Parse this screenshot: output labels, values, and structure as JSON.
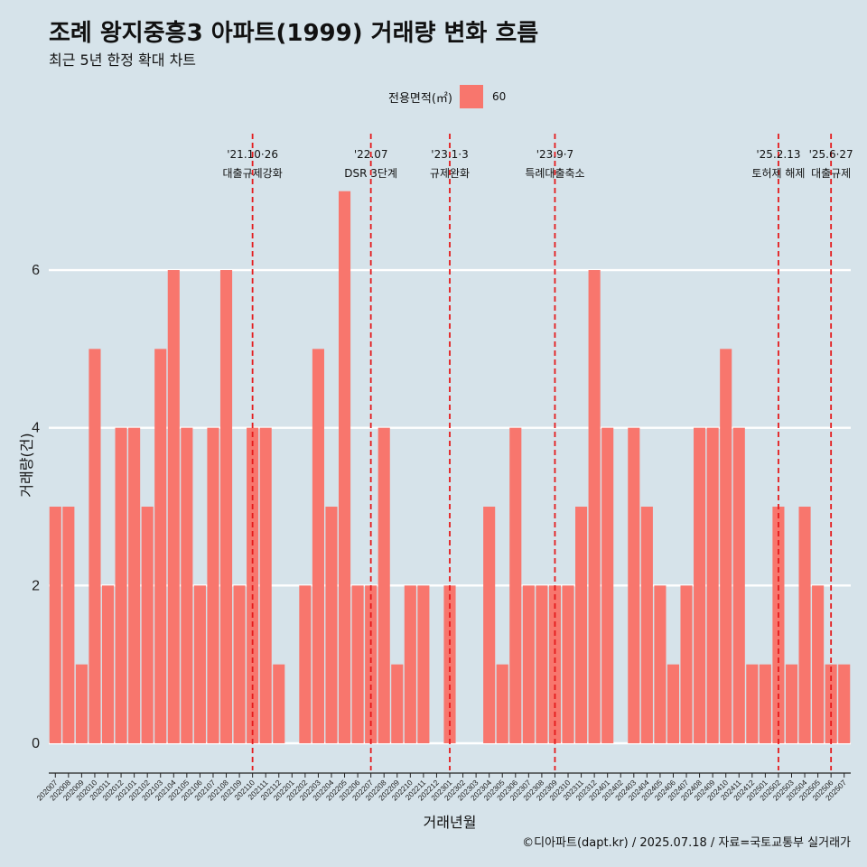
{
  "header": {
    "title": "조례 왕지중흥3 아파트(1999) 거래량 변화 흐름",
    "subtitle": "최근 5년 한정 확대 차트"
  },
  "legend": {
    "title": "전용면적(㎡)",
    "items": [
      {
        "label": "60",
        "color": "#f8766d"
      }
    ]
  },
  "caption": "©디아파트(dapt.kr) / 2025.07.18 / 자료=국토교통부 실거래가",
  "chart_data": {
    "type": "bar",
    "title": "조례 왕지중흥3 아파트(1999) 거래량 변화 흐름",
    "subtitle": "최근 5년 한정 확대 차트",
    "xlabel": "거래년월",
    "ylabel": "거래량(건)",
    "ylim": [
      0,
      7.3
    ],
    "yticks": [
      0,
      2,
      4,
      6
    ],
    "grid": true,
    "legend_position": "top",
    "bar_color": "#f8766d",
    "categories": [
      "202007",
      "202008",
      "202009",
      "202010",
      "202011",
      "202012",
      "202101",
      "202102",
      "202103",
      "202104",
      "202105",
      "202106",
      "202107",
      "202108",
      "202109",
      "202110",
      "202111",
      "202112",
      "202201",
      "202202",
      "202203",
      "202204",
      "202205",
      "202206",
      "202207",
      "202208",
      "202209",
      "202210",
      "202211",
      "202212",
      "202301",
      "202302",
      "202303",
      "202304",
      "202305",
      "202306",
      "202307",
      "202308",
      "202309",
      "202310",
      "202311",
      "202312",
      "202401",
      "202402",
      "202403",
      "202404",
      "202405",
      "202406",
      "202407",
      "202408",
      "202409",
      "202410",
      "202411",
      "202412",
      "202501",
      "202502",
      "202503",
      "202504",
      "202505",
      "202506",
      "202507"
    ],
    "series": [
      {
        "name": "60",
        "values": [
          3,
          3,
          1,
          5,
          2,
          4,
          4,
          3,
          5,
          6,
          4,
          2,
          4,
          6,
          2,
          4,
          4,
          1,
          0,
          2,
          5,
          3,
          7,
          2,
          2,
          4,
          1,
          2,
          2,
          0,
          2,
          0,
          0,
          3,
          1,
          4,
          2,
          2,
          2,
          2,
          3,
          6,
          4,
          0,
          4,
          3,
          2,
          1,
          2,
          4,
          4,
          5,
          4,
          1,
          1,
          3,
          1,
          3,
          2,
          1,
          1
        ]
      }
    ],
    "annotations": [
      {
        "date_label": "'21.10·26",
        "text": "대출규제강화",
        "position": "202110",
        "line_color": "#e41a1c"
      },
      {
        "date_label": "'22.07",
        "text": "DSR 3단계",
        "position": "202207",
        "line_color": "#e41a1c"
      },
      {
        "date_label": "'23.1·3",
        "text": "규제완화",
        "position": "202301",
        "line_color": "#e41a1c"
      },
      {
        "date_label": "'23.9·7",
        "text": "특례대출축소",
        "position": "202309",
        "line_color": "#e41a1c"
      },
      {
        "date_label": "'25.2.13",
        "text": "토허제 해제",
        "position": "202502",
        "line_color": "#e41a1c"
      },
      {
        "date_label": "'25.6·27",
        "text": "대출규제",
        "position": "202506",
        "line_color": "#e41a1c"
      }
    ]
  }
}
